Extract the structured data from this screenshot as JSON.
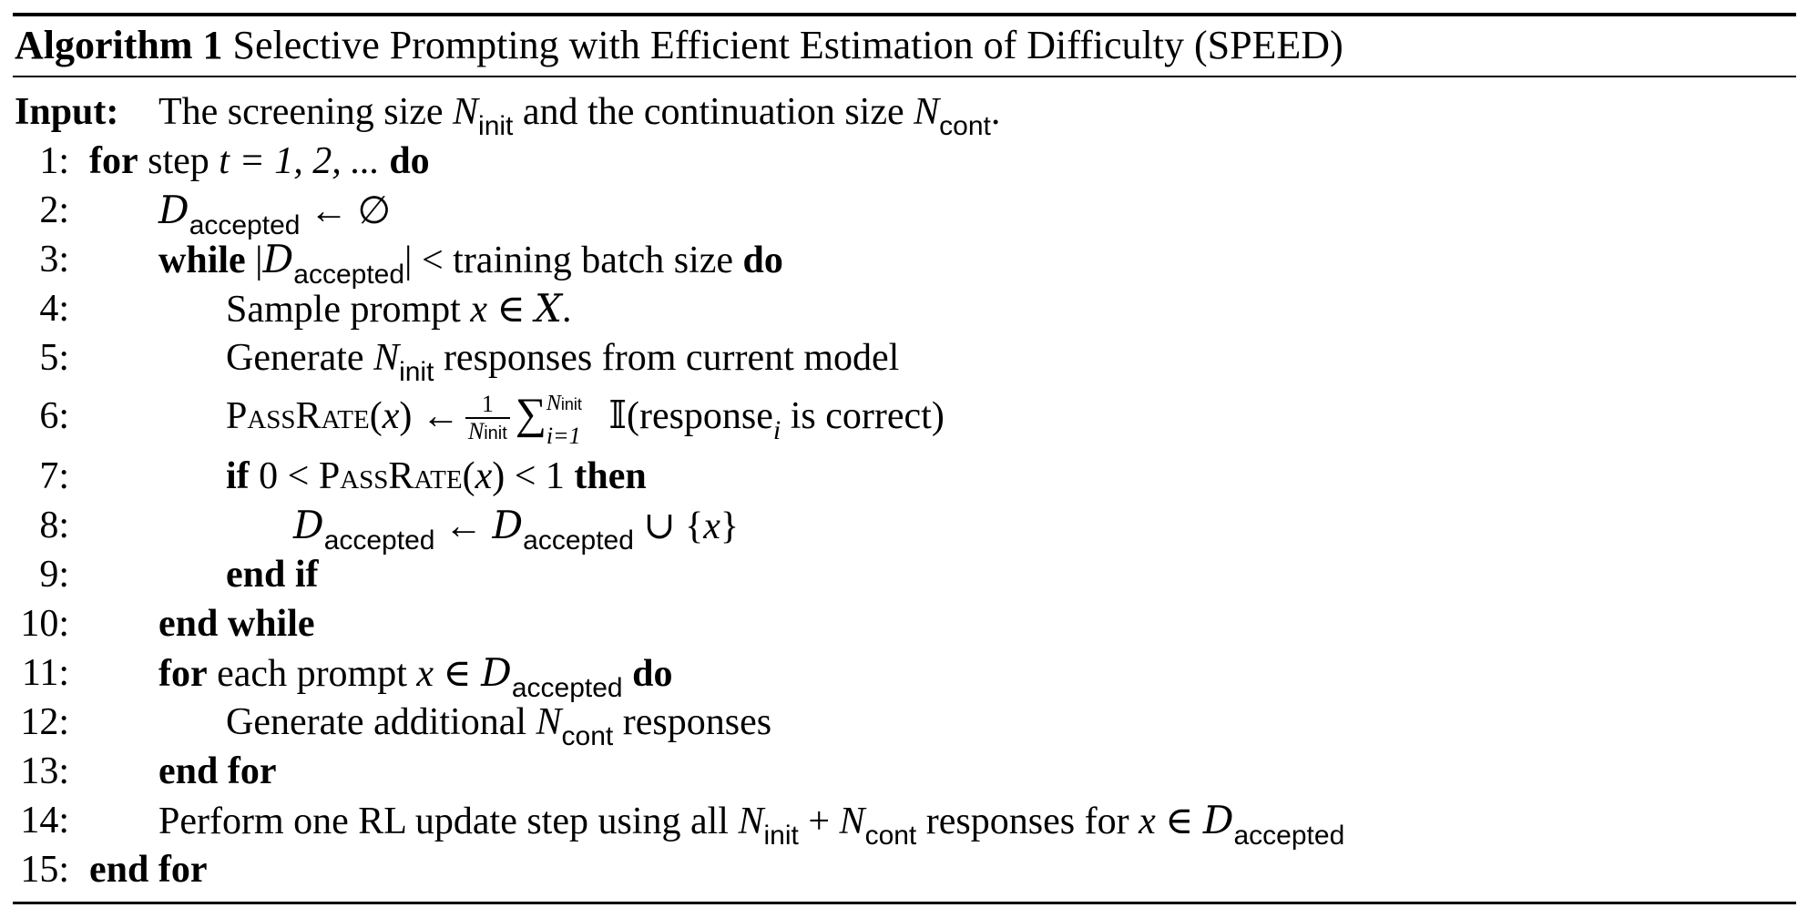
{
  "algorithm": {
    "label": "Algorithm 1",
    "title": "Selective Prompting with Efficient Estimation of Difficulty (SPEED)",
    "input_label": "Input:",
    "input_text_1": "The screening size",
    "input_text_2": "and the continuation size",
    "lines": [
      {
        "num": "1:"
      },
      {
        "num": "2:"
      },
      {
        "num": "3:"
      },
      {
        "num": "4:"
      },
      {
        "num": "5:"
      },
      {
        "num": "6:"
      },
      {
        "num": "7:"
      },
      {
        "num": "8:"
      },
      {
        "num": "9:"
      },
      {
        "num": "10:"
      },
      {
        "num": "11:"
      },
      {
        "num": "12:"
      },
      {
        "num": "13:"
      },
      {
        "num": "14:"
      },
      {
        "num": "15:"
      }
    ],
    "kw": {
      "for": "for",
      "do": "do",
      "while": "while",
      "if": "if",
      "then": "then",
      "end_if": "end if",
      "end_while": "end while",
      "end_for": "end for"
    },
    "text": {
      "step": "step",
      "step_vals": "t = 1, 2, ...",
      "training_batch": "training batch size",
      "sample_prompt": "Sample prompt",
      "generate": "Generate",
      "responses_from": "responses from current model",
      "passrate": "PassRate",
      "response_i": "(response",
      "is_correct": "is correct)",
      "each_prompt": "each prompt",
      "generate_additional": "Generate additional",
      "responses": "responses",
      "perform": "Perform one RL update step using all",
      "responses_for": "responses for"
    },
    "sym": {
      "N": "N",
      "init": "init",
      "cont": "cont",
      "D": "D",
      "accepted": "accepted",
      "x": "x",
      "X": "X"
    }
  }
}
